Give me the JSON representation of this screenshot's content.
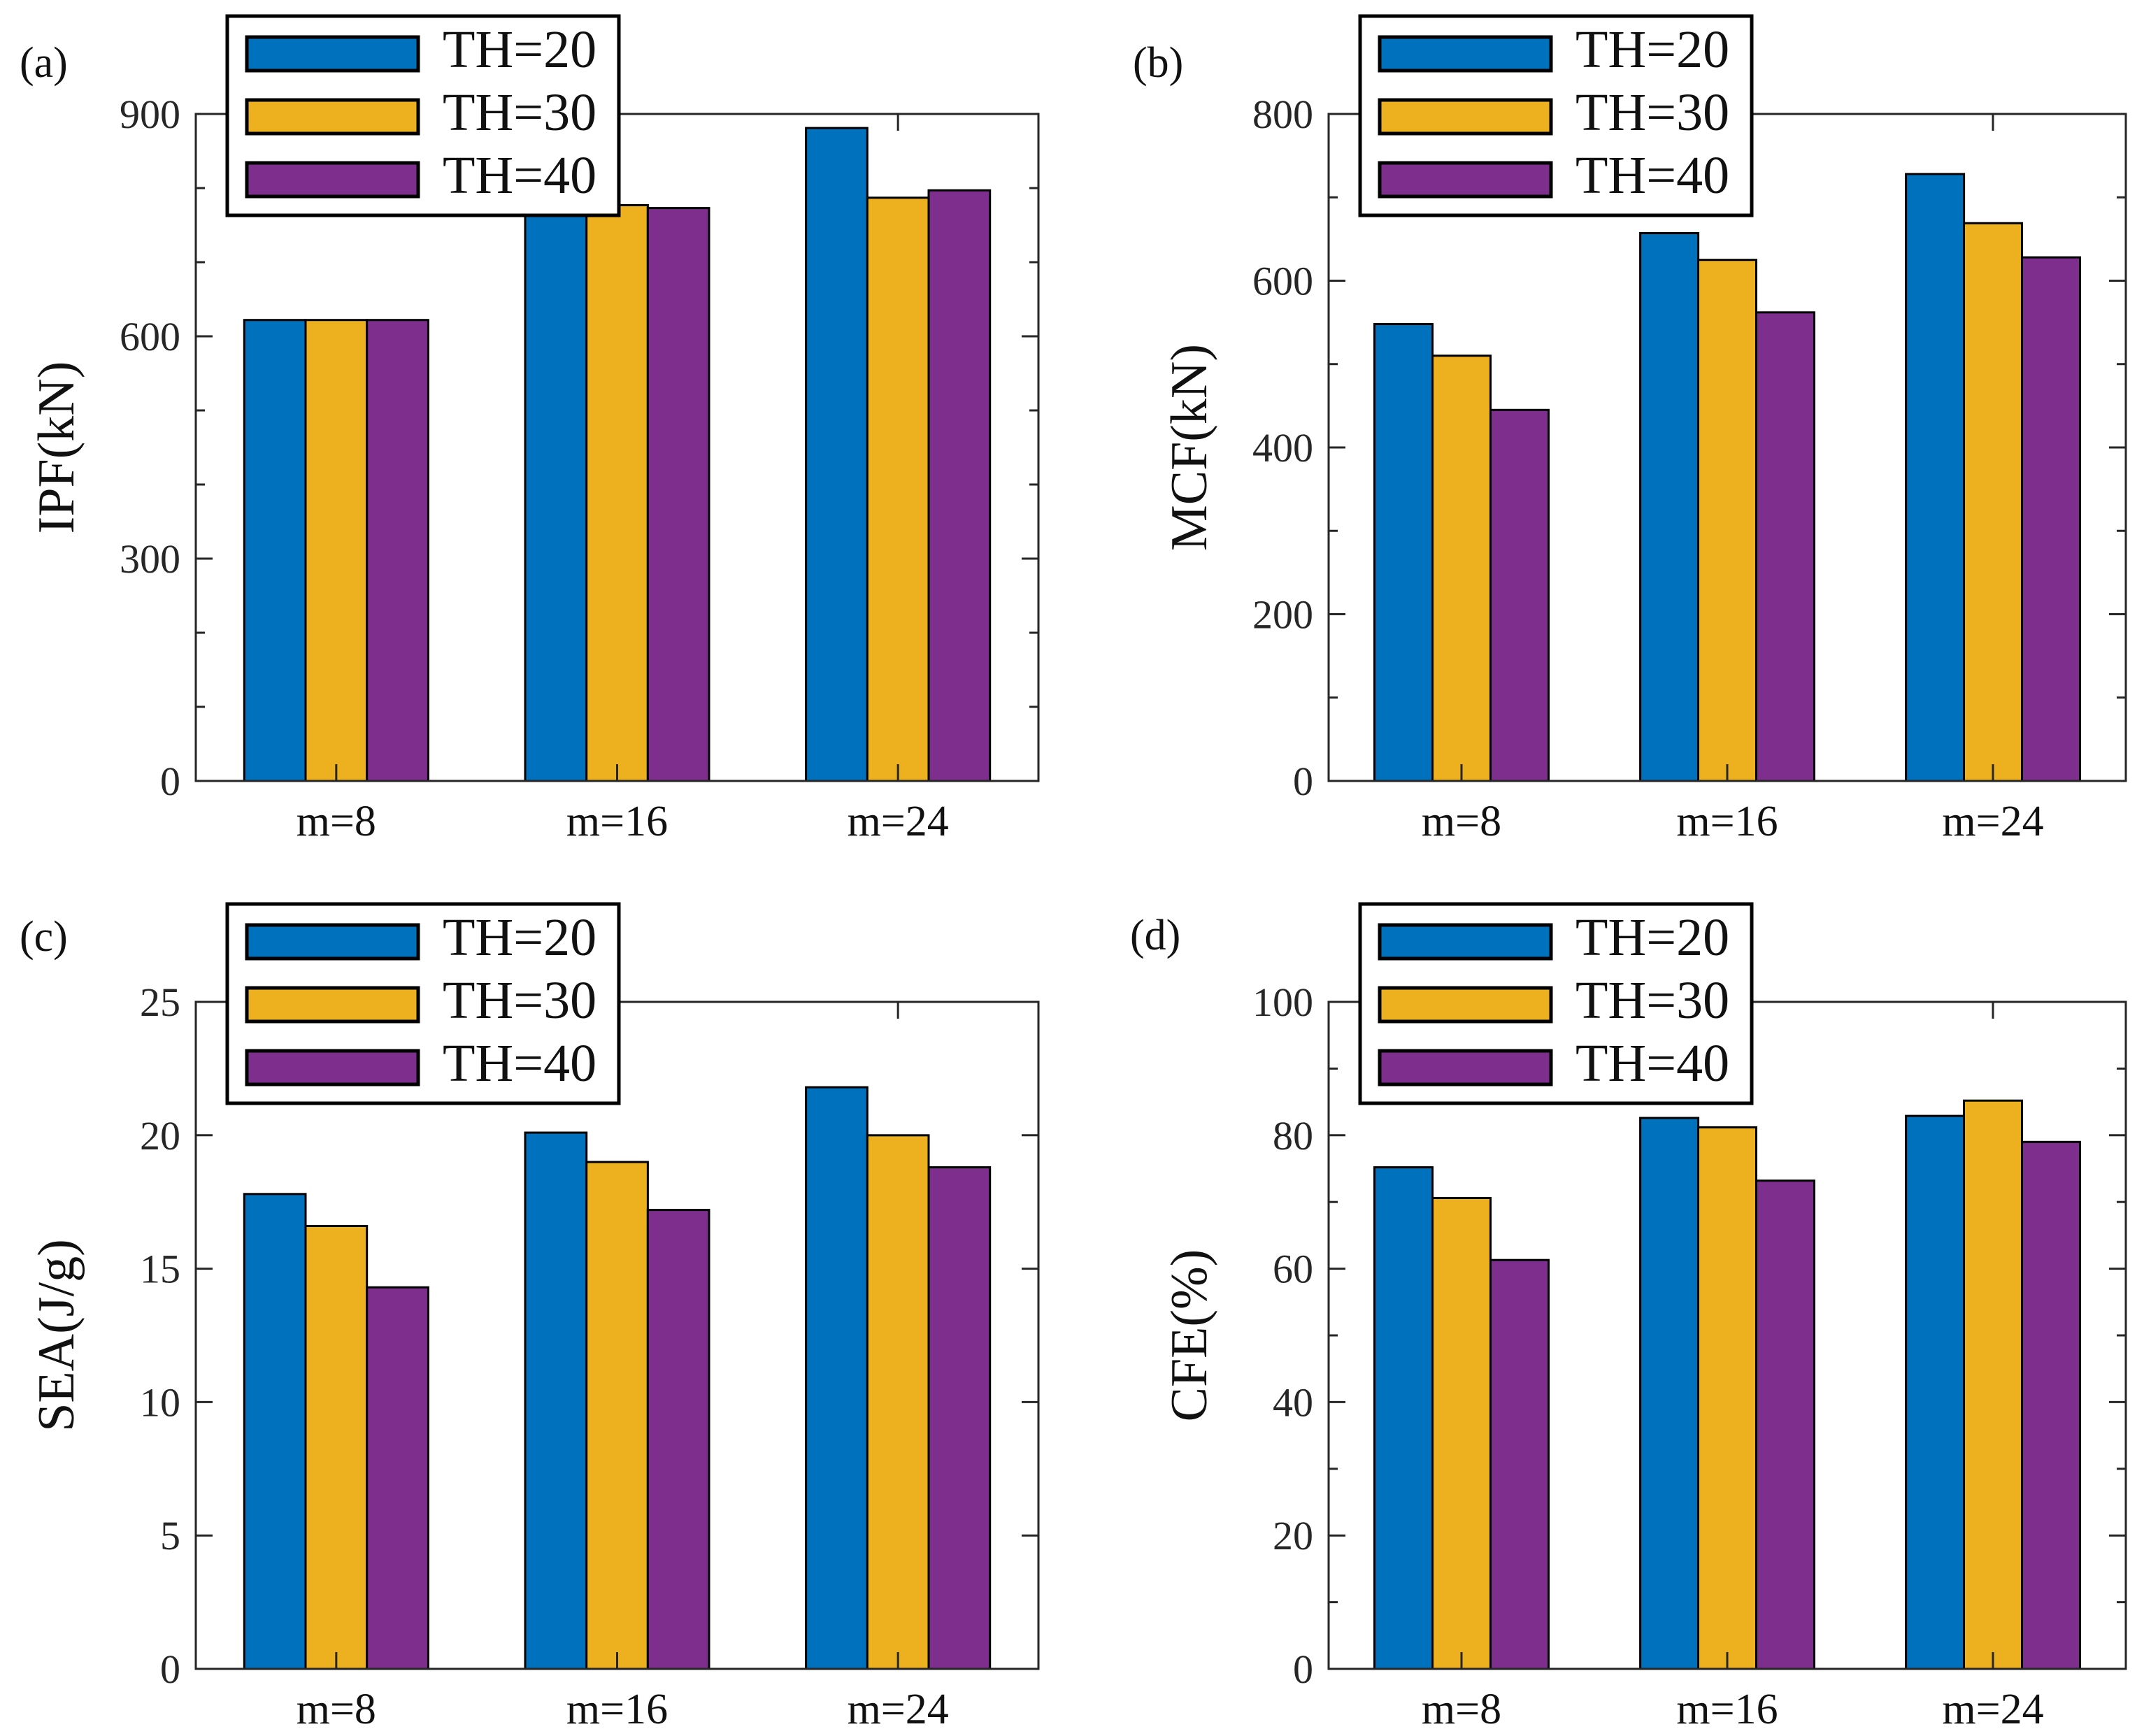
{
  "style": {
    "series_colors": [
      "#0072BD",
      "#EDB120",
      "#7E2F8E"
    ],
    "bar_edge_color": "#000000",
    "axis_color": "#262626",
    "tick_label_color": "#262626",
    "text_color": "#111111",
    "legend_border_color": "#000000",
    "legend_background": "#ffffff",
    "background": "#ffffff"
  },
  "legend": {
    "entries": [
      "TH=20",
      "TH=30",
      "TH=40"
    ],
    "position": "top-left"
  },
  "chart_data": [
    {
      "type": "bar",
      "panel_label": "(a)",
      "title": "",
      "xlabel": "",
      "ylabel": "IPF(kN)",
      "ylim": [
        0,
        900
      ],
      "yticks": [
        0,
        300,
        600,
        900
      ],
      "ytick_labels": [
        "0",
        "300",
        "600",
        "900"
      ],
      "yminor_step": 100,
      "grid": false,
      "legend_position": "top-left",
      "categories": [
        "m=8",
        "m=16",
        "m=24"
      ],
      "series": [
        {
          "name": "TH=20",
          "values": [
            622,
            800,
            881
          ]
        },
        {
          "name": "TH=30",
          "values": [
            622,
            777,
            787
          ]
        },
        {
          "name": "TH=40",
          "values": [
            622,
            773,
            797
          ]
        }
      ]
    },
    {
      "type": "bar",
      "panel_label": "(b)",
      "title": "",
      "xlabel": "",
      "ylabel": "MCF(kN)",
      "ylim": [
        0,
        800
      ],
      "yticks": [
        0,
        200,
        400,
        600,
        800
      ],
      "ytick_labels": [
        "0",
        "200",
        "400",
        "600",
        "800"
      ],
      "yminor_step": 100,
      "grid": false,
      "legend_position": "top-left",
      "categories": [
        "m=8",
        "m=16",
        "m=24"
      ],
      "series": [
        {
          "name": "TH=20",
          "values": [
            548,
            657,
            728
          ]
        },
        {
          "name": "TH=30",
          "values": [
            510,
            625,
            669
          ]
        },
        {
          "name": "TH=40",
          "values": [
            445,
            562,
            628
          ]
        }
      ]
    },
    {
      "type": "bar",
      "panel_label": "(c)",
      "title": "",
      "xlabel": "",
      "ylabel": "SEA(J/g)",
      "ylim": [
        0,
        25
      ],
      "yticks": [
        0,
        5,
        10,
        15,
        20,
        25
      ],
      "ytick_labels": [
        "0",
        "5",
        "10",
        "15",
        "20",
        "25"
      ],
      "yminor_step": null,
      "grid": false,
      "legend_position": "top-left",
      "categories": [
        "m=8",
        "m=16",
        "m=24"
      ],
      "series": [
        {
          "name": "TH=20",
          "values": [
            17.8,
            20.1,
            21.8
          ]
        },
        {
          "name": "TH=30",
          "values": [
            16.6,
            19.0,
            20.0
          ]
        },
        {
          "name": "TH=40",
          "values": [
            14.3,
            17.2,
            18.8
          ]
        }
      ]
    },
    {
      "type": "bar",
      "panel_label": "(d)",
      "title": "",
      "xlabel": "",
      "ylabel": "CFE(%)",
      "ylim": [
        0,
        100
      ],
      "yticks": [
        0,
        20,
        40,
        60,
        80,
        100
      ],
      "ytick_labels": [
        "0",
        "20",
        "40",
        "60",
        "80",
        "100"
      ],
      "yminor_step": 10,
      "grid": false,
      "legend_position": "top-left",
      "categories": [
        "m=8",
        "m=16",
        "m=24"
      ],
      "series": [
        {
          "name": "TH=20",
          "values": [
            75.2,
            82.6,
            82.9
          ]
        },
        {
          "name": "TH=30",
          "values": [
            70.6,
            81.2,
            85.2
          ]
        },
        {
          "name": "TH=40",
          "values": [
            61.3,
            73.2,
            79.0
          ]
        }
      ]
    }
  ]
}
